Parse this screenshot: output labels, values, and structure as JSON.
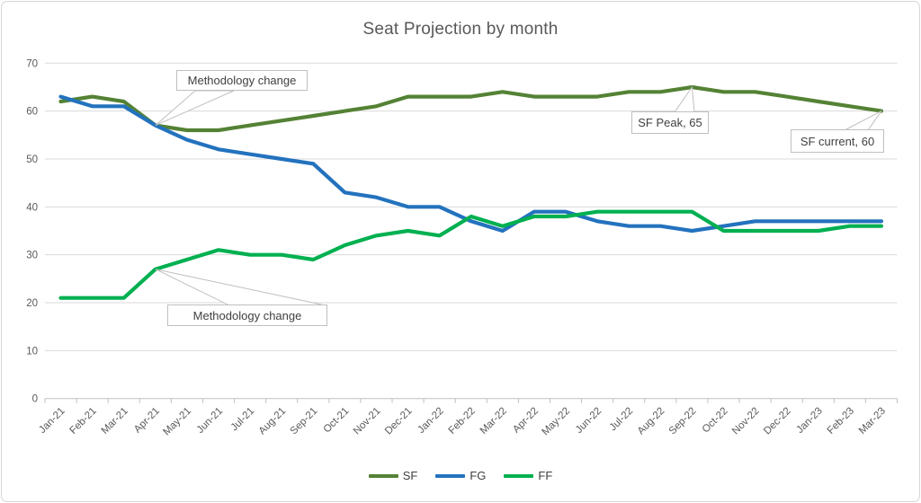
{
  "chart_data": {
    "type": "line",
    "title": "Seat Projection by month",
    "xlabel": "",
    "ylabel": "",
    "ylim": [
      0,
      70
    ],
    "ytick_step": 10,
    "ytick_labels": [
      "0",
      "10",
      "20",
      "30",
      "40",
      "50",
      "60",
      "70"
    ],
    "grid": true,
    "legend_position": "bottom",
    "categories": [
      "Jan-21",
      "Feb-21",
      "Mar-21",
      "Apr-21",
      "May-21",
      "Jun-21",
      "Jul-21",
      "Aug-21",
      "Sep-21",
      "Oct-21",
      "Nov-21",
      "Dec-21",
      "Jan-22",
      "Feb-22",
      "Mar-22",
      "Apr-22",
      "May-22",
      "Jun-22",
      "Jul-22",
      "Aug-22",
      "Sep-22",
      "Oct-22",
      "Nov-22",
      "Dec-22",
      "Jan-23",
      "Feb-23",
      "Mar-23"
    ],
    "series": [
      {
        "name": "SF",
        "color": "#548235",
        "values": [
          62,
          63,
          62,
          57,
          56,
          56,
          57,
          58,
          59,
          60,
          61,
          63,
          63,
          63,
          64,
          63,
          63,
          63,
          64,
          64,
          65,
          64,
          64,
          63,
          62,
          61,
          60
        ]
      },
      {
        "name": "FG",
        "color": "#2372be",
        "values": [
          63,
          61,
          61,
          57,
          54,
          52,
          51,
          50,
          49,
          43,
          42,
          40,
          40,
          37,
          35,
          39,
          39,
          37,
          36,
          36,
          35,
          36,
          37,
          37,
          37,
          37,
          37
        ]
      },
      {
        "name": "FF",
        "color": "#00b050",
        "values": [
          21,
          21,
          21,
          27,
          29,
          31,
          30,
          30,
          29,
          32,
          34,
          35,
          34,
          38,
          36,
          38,
          38,
          39,
          39,
          39,
          39,
          35,
          35,
          35,
          35,
          36,
          36
        ]
      }
    ],
    "annotations": [
      {
        "label": "Methodology change",
        "target_series": "SF",
        "target_month": "Apr-21",
        "target_value": 57
      },
      {
        "label": "Methodology change",
        "target_series": "FF",
        "target_month": "Apr-21",
        "target_value": 27
      },
      {
        "label": "SF Peak, 65",
        "target_series": "SF",
        "target_month": "Sep-22",
        "target_value": 65
      },
      {
        "label": "SF current, 60",
        "target_series": "SF",
        "target_month": "Mar-23",
        "target_value": 60
      }
    ],
    "colors": {
      "gridline": "#d9d9d9",
      "axis": "#bfbfbf",
      "axis_text": "#595959",
      "callout_border": "#bfbfbf",
      "callout_text": "#404040"
    }
  }
}
